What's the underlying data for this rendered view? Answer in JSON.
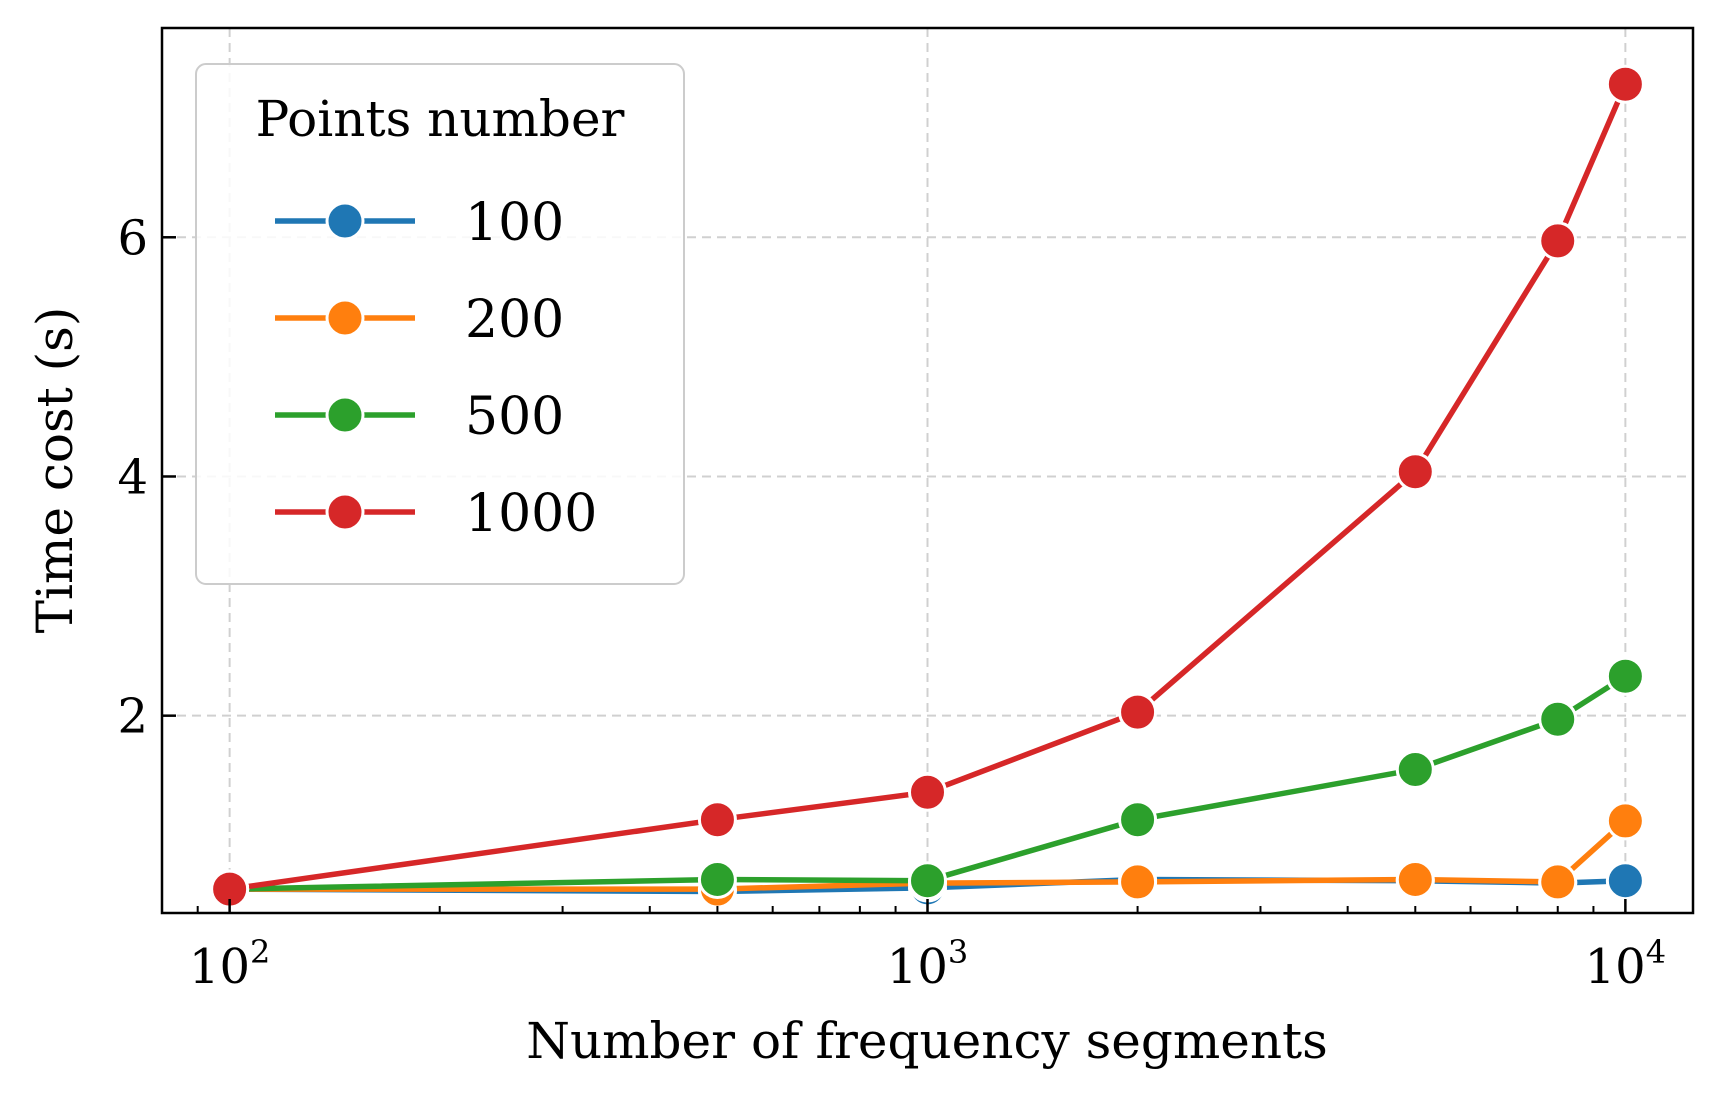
{
  "chart_data": {
    "type": "line",
    "xlabel": "Number of frequency segments",
    "ylabel": "Time cost (s)",
    "xscale": "log",
    "xlim": [
      80,
      12500
    ],
    "ylim": [
      0.35,
      7.75
    ],
    "xticks": [
      {
        "value": 100,
        "base": "10",
        "exp": "2"
      },
      {
        "value": 1000,
        "base": "10",
        "exp": "3"
      },
      {
        "value": 10000,
        "base": "10",
        "exp": "4"
      }
    ],
    "yticks": [
      {
        "value": 2,
        "label": "2"
      },
      {
        "value": 4,
        "label": "4"
      },
      {
        "value": 6,
        "label": "6"
      }
    ],
    "grid": true,
    "legend": {
      "title": "Points number",
      "position": "top-left"
    },
    "x": [
      100,
      500,
      1000,
      2000,
      5000,
      8000,
      10000
    ],
    "series": [
      {
        "name": "100",
        "color": "#1f77b4",
        "values": [
          0.55,
          0.53,
          0.56,
          0.63,
          0.62,
          0.6,
          0.62
        ]
      },
      {
        "name": "200",
        "color": "#ff7f0e",
        "values": [
          0.55,
          0.55,
          0.6,
          0.61,
          0.63,
          0.61,
          1.12
        ]
      },
      {
        "name": "500",
        "color": "#2ca02c",
        "values": [
          0.55,
          0.63,
          0.62,
          1.13,
          1.55,
          1.97,
          2.33
        ]
      },
      {
        "name": "1000",
        "color": "#d62728",
        "values": [
          0.55,
          1.13,
          1.36,
          2.03,
          4.04,
          5.97,
          7.28
        ]
      }
    ]
  }
}
